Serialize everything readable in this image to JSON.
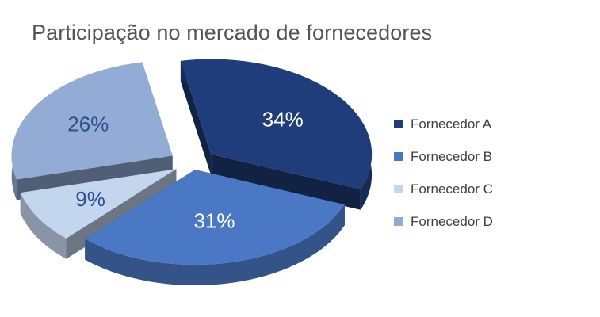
{
  "chart_data": {
    "type": "pie",
    "title": "Participação no mercado de fornecedores",
    "categories": [
      "Fornecedor A",
      "Fornecedor B",
      "Fornecedor C",
      "Fornecedor D"
    ],
    "values": [
      34,
      31,
      9,
      26
    ],
    "value_labels": [
      "34%",
      "31%",
      "9%",
      "26%"
    ],
    "colors": [
      "#1f3d7a",
      "#4a78c4",
      "#c4d5ee",
      "#93acd6"
    ],
    "style": "3d-exploded",
    "legend_position": "right"
  }
}
